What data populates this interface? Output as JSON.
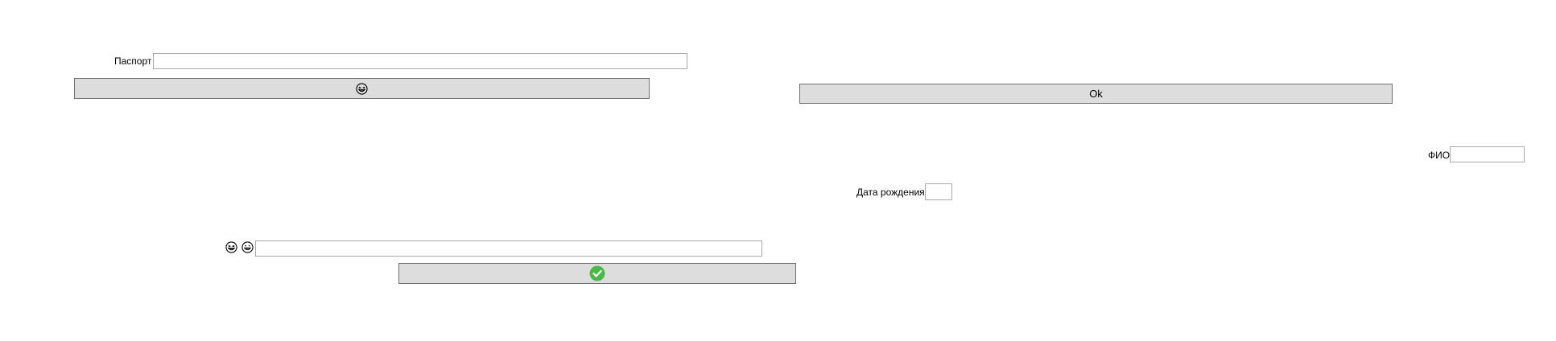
{
  "passport": {
    "label": "Паспорт",
    "value": ""
  },
  "emoji_button": {
    "icon": "grinning-squint-face-icon"
  },
  "ok_button": {
    "label": "Ok"
  },
  "fio": {
    "label": "ФИО",
    "value": ""
  },
  "birth_date": {
    "label": "Дата рождения",
    "value": ""
  },
  "emoji_field": {
    "icons": [
      "grinning-squint-face-icon",
      "grinning-face-icon"
    ],
    "value": ""
  },
  "confirm_button": {
    "icon": "check-circle-icon",
    "icon_color": "#4cb74a"
  },
  "colors": {
    "button_bg": "#dddddd",
    "button_border": "#707070",
    "field_border": "#a9a9a9"
  }
}
